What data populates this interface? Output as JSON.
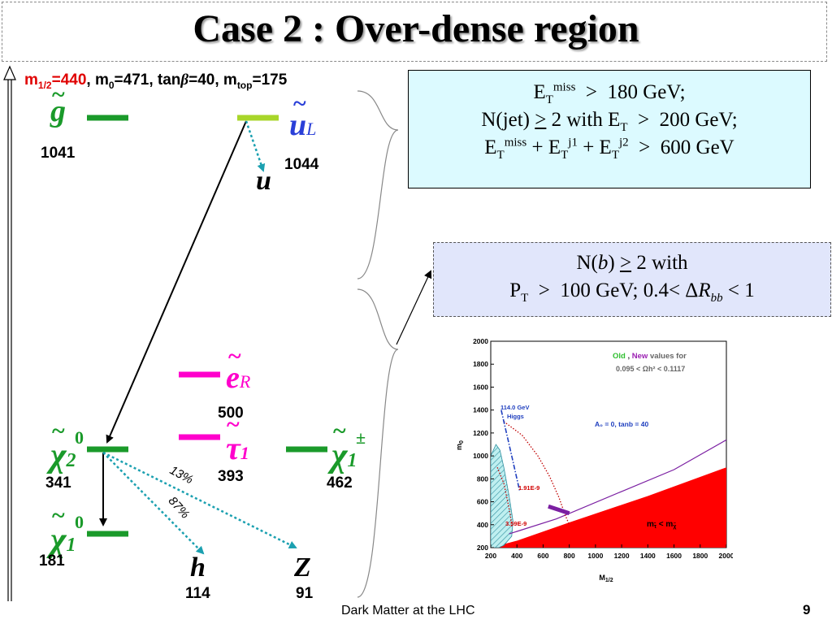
{
  "slide": {
    "title": "Case 2 : Over-dense region",
    "footer": "Dark Matter at the LHC",
    "page_number": "9"
  },
  "params": {
    "m12_label": "m",
    "m12_sub": "1/2",
    "m12_value": "=440",
    "m0": ", m",
    "m0_sub": "0",
    "m0_value": "=471, tan",
    "beta": "β",
    "tanb_value": "=40, m",
    "mtop_sub": "top",
    "mtop_value": "=175"
  },
  "spectrum": {
    "gluino": {
      "symbol": "g",
      "mass": "1041"
    },
    "squark": {
      "symbol": "u",
      "sub": "L",
      "mass": "1044",
      "decay_product": "u"
    },
    "selectron": {
      "symbol": "e",
      "sub": "R",
      "mass": "500"
    },
    "stau": {
      "symbol": "τ",
      "sub": "1",
      "mass": "393"
    },
    "chi2": {
      "symbol": "χ",
      "sub": "2",
      "sup": "0",
      "mass": "341"
    },
    "chargino": {
      "symbol": "χ",
      "sub": "1",
      "sup": "±",
      "mass": "462"
    },
    "chi1": {
      "symbol": "χ",
      "sub": "1",
      "sup": "0",
      "mass": "181"
    },
    "higgs": {
      "symbol": "h",
      "mass": "114"
    },
    "zboson": {
      "symbol": "Z",
      "mass": "91"
    },
    "branching_13": "13%",
    "branching_87": "87%",
    "tilde": "~"
  },
  "cuts_box": {
    "line1_a": "E",
    "line1_sub": "T",
    "line1_sup": "miss",
    "line1_b": "  >  180 GeV;",
    "line2_a": "N(jet) ",
    "line2_ge": ">",
    "line2_b": " 2 with E",
    "line2_sub": "T",
    "line2_c": "  >  200 GeV;",
    "line3_a": "E",
    "line3_sub1": "T",
    "line3_sup1": "miss",
    "line3_b": " + E",
    "line3_sub2": "T",
    "line3_sup2": "j1",
    "line3_c": " + E",
    "line3_sub3": "T",
    "line3_sup3": "j2",
    "line3_d": "  >  600 GeV"
  },
  "bcut_box": {
    "line1_a": "N(",
    "line1_b": "b",
    "line1_c": ") ",
    "line1_ge": ">",
    "line1_d": " 2 with",
    "line2_a": "P",
    "line2_sub": "T",
    "line2_b": "  >  100 GeV; 0.4< ",
    "line2_delta": "Δ",
    "line2_R": "R",
    "line2_sub2": "bb",
    "line2_c": " < 1"
  },
  "plot": {
    "legend_old": "Old",
    "legend_comma": " , ",
    "legend_new": "New",
    "legend_rest": " values for",
    "legend_relic": "0.095 <  Ωh² < 0.1117",
    "higgs_label1": "114.0 GeV",
    "higgs_label2": "Higgs",
    "params_label": "A₀ = 0, tanb = 40",
    "contour1": "1.91E-9",
    "contour2": "3.59E-9",
    "mass_region": "m",
    "mass_sub1": "τ̃",
    "mass_lt": " < m",
    "mass_sub2": "χ̃",
    "xlabel": "M",
    "xlabel_sub": "1/2",
    "ylabel": "m",
    "ylabel_sub": "0",
    "colors": {
      "excluded": "#ff0000",
      "relic_new": "#7b1fa2",
      "higgs": "#1f3fbf",
      "gm2": "#3fbfbf",
      "contour": "#c00000"
    }
  },
  "chart_data": {
    "type": "area",
    "xlabel": "M1/2",
    "ylabel": "m0",
    "xlim": [
      200,
      2000
    ],
    "ylim": [
      200,
      2000
    ],
    "x_ticks": [
      200,
      400,
      600,
      800,
      1000,
      1200,
      1400,
      1600,
      1800,
      2000
    ],
    "y_ticks": [
      200,
      400,
      600,
      800,
      1000,
      1200,
      1400,
      1600,
      1800,
      2000
    ],
    "series": [
      {
        "name": "New",
        "x": [
          640,
          800
        ],
        "y": [
          560,
          500
        ]
      },
      {
        "name": "114.0 GeV Higgs",
        "x": [
          280,
          300,
          340,
          380,
          420
        ],
        "y": [
          1400,
          1300,
          1100,
          900,
          700
        ]
      }
    ],
    "annotations": [
      "Old , New values for",
      "0.095 <  Ωh² < 0.1117",
      "114.0 GeV Higgs",
      "A0 = 0, tanb = 40",
      "1.91E-9",
      "3.59E-9"
    ]
  }
}
